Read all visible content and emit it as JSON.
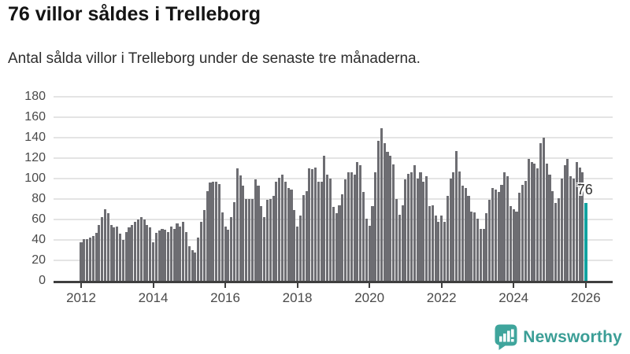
{
  "title": "76 villor såldes i Trelleborg",
  "subtitle": "Antal sålda villor i Trelleborg under de senaste tre månaderna.",
  "branding": {
    "name": "Newsworthy",
    "color": "#3b9e96",
    "icon": "newsworthy-speech-bubble-bar-chart-icon"
  },
  "chart_data": {
    "type": "bar",
    "title": "76 villor såldes i Trelleborg",
    "subtitle": "Antal sålda villor i Trelleborg under de senaste tre månaderna.",
    "xlabel": "",
    "ylabel": "",
    "ylim": [
      0,
      180
    ],
    "yticks": [
      0,
      20,
      40,
      60,
      80,
      100,
      120,
      140,
      160,
      180
    ],
    "xtick_labels": [
      "2012",
      "2014",
      "2016",
      "2018",
      "2020",
      "2022",
      "2024",
      "2026"
    ],
    "grid": "horizontal",
    "legend": "none",
    "x_start_month": "2012-01",
    "x_end_month": "2026-01",
    "bar_color": "#6d6d72",
    "highlight_color": "#11a2a0",
    "highlight_index": 168,
    "highlight_label": "76",
    "highlight_value": 76,
    "values": [
      38,
      41,
      41,
      42,
      44,
      47,
      55,
      62,
      70,
      66,
      55,
      52,
      53,
      46,
      40,
      48,
      52,
      55,
      58,
      60,
      62,
      60,
      55,
      52,
      38,
      47,
      49,
      51,
      50,
      48,
      53,
      51,
      56,
      53,
      58,
      48,
      34,
      30,
      28,
      42,
      58,
      69,
      88,
      96,
      97,
      97,
      95,
      67,
      53,
      50,
      62,
      77,
      110,
      103,
      93,
      80,
      80,
      80,
      99,
      93,
      73,
      62,
      79,
      80,
      83,
      97,
      101,
      104,
      97,
      91,
      89,
      69,
      53,
      64,
      84,
      88,
      110,
      109,
      111,
      97,
      97,
      122,
      104,
      100,
      72,
      66,
      74,
      85,
      99,
      106,
      106,
      104,
      116,
      113,
      87,
      61,
      54,
      73,
      106,
      137,
      149,
      135,
      126,
      122,
      114,
      80,
      65,
      74,
      99,
      105,
      106,
      113,
      100,
      106,
      97,
      102,
      73,
      74,
      64,
      58,
      64,
      58,
      83,
      100,
      106,
      127,
      107,
      93,
      91,
      83,
      68,
      67,
      61,
      51,
      51,
      66,
      79,
      91,
      89,
      87,
      94,
      106,
      102,
      73,
      70,
      68,
      86,
      94,
      98,
      119,
      116,
      115,
      110,
      135,
      140,
      115,
      104,
      88,
      76,
      81,
      100,
      113,
      119,
      102,
      100,
      116,
      111,
      106,
      76
    ]
  }
}
